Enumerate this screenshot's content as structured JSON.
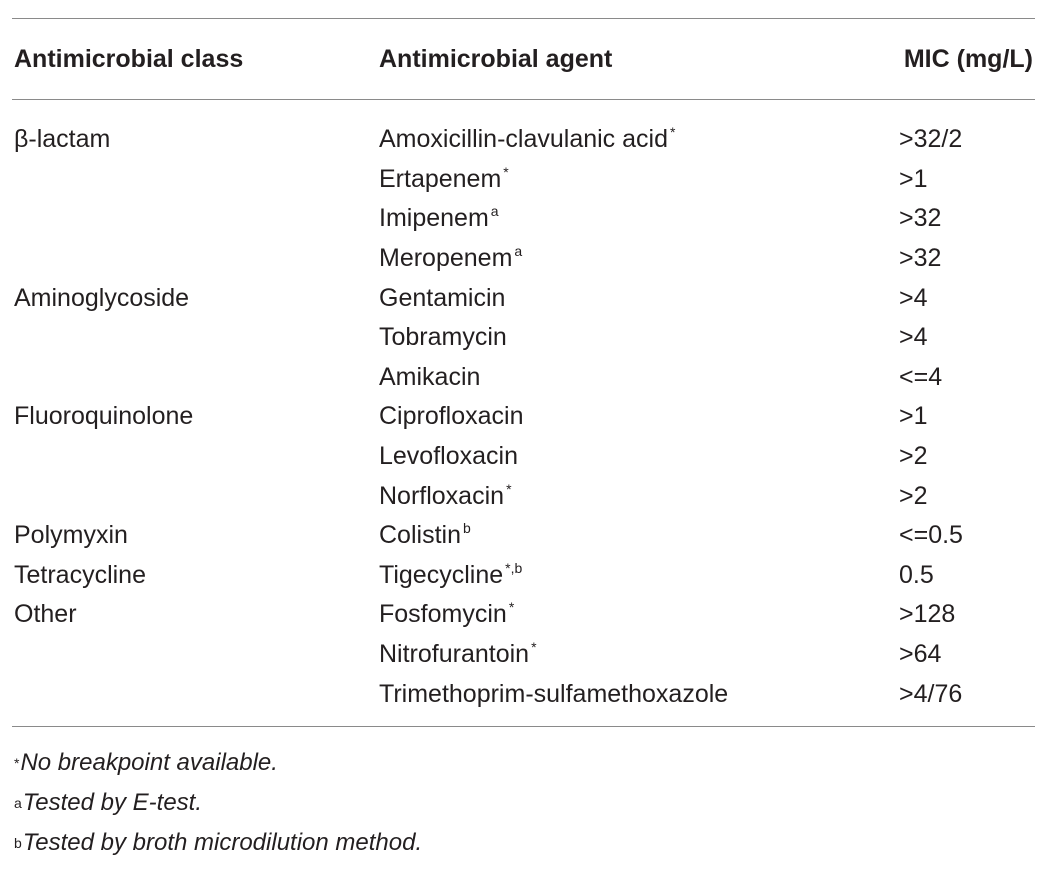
{
  "table": {
    "headers": {
      "class": "Antimicrobial class",
      "agent": "Antimicrobial agent",
      "mic": "MIC (mg/L)"
    },
    "rows": [
      {
        "class": "β-lactam",
        "agent": "Amoxicillin-clavulanic acid",
        "sup": "*",
        "mic": ">32/2"
      },
      {
        "class": "",
        "agent": "Ertapenem",
        "sup": "*",
        "mic": ">1"
      },
      {
        "class": "",
        "agent": "Imipenem",
        "sup": "a",
        "mic": ">32"
      },
      {
        "class": "",
        "agent": "Meropenem",
        "sup": "a",
        "mic": ">32"
      },
      {
        "class": "Aminoglycoside",
        "agent": "Gentamicin",
        "sup": "",
        "mic": ">4"
      },
      {
        "class": "",
        "agent": "Tobramycin",
        "sup": "",
        "mic": " >4"
      },
      {
        "class": "",
        "agent": "Amikacin",
        "sup": "",
        "mic": "<=4"
      },
      {
        "class": "Fluoroquinolone",
        "agent": "Ciprofloxacin",
        "sup": "",
        "mic": ">1"
      },
      {
        "class": "",
        "agent": "Levofloxacin",
        "sup": "",
        "mic": ">2"
      },
      {
        "class": "",
        "agent": "Norfloxacin",
        "sup": "*",
        "mic": ">2"
      },
      {
        "class": "Polymyxin",
        "agent": "Colistin",
        "sup": "b",
        "mic": "<=0.5"
      },
      {
        "class": "Tetracycline",
        "agent": "Tigecycline",
        "sup": "*,b",
        "mic": "0.5"
      },
      {
        "class": "Other",
        "agent": "Fosfomycin",
        "sup": "*",
        "mic": ">128"
      },
      {
        "class": "",
        "agent": "Nitrofurantoin",
        "sup": "*",
        "mic": ">64"
      },
      {
        "class": "",
        "agent": "Trimethoprim-sulfamethoxazole",
        "sup": "",
        "mic": ">4/76"
      }
    ]
  },
  "footnotes": [
    {
      "mark": "*",
      "text": "No breakpoint available."
    },
    {
      "mark": "a",
      "text": "Tested by E-test."
    },
    {
      "mark": "b",
      "text": "Tested by broth microdilution method."
    }
  ]
}
